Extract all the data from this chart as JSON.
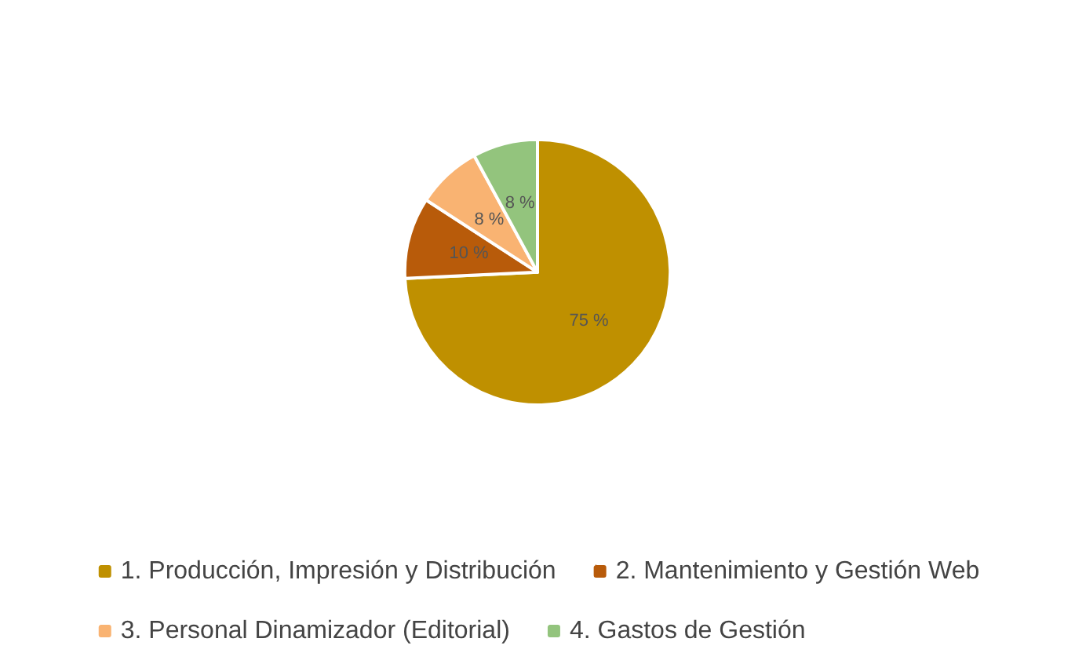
{
  "chart_data": {
    "type": "pie",
    "categories": [
      "1. Producción, Impresión y Distribución",
      "2. Mantenimiento y Gestión Web",
      "3. Personal Dinamizador (Editorial)",
      "4. Gastos de Gestión"
    ],
    "values": [
      75,
      10,
      8,
      8
    ],
    "value_labels": [
      "75 %",
      "10 %",
      "8 %",
      "8 %"
    ],
    "colors": [
      "#bf9000",
      "#b85b0a",
      "#f9b372",
      "#93c47d"
    ],
    "legend": "bottom"
  }
}
